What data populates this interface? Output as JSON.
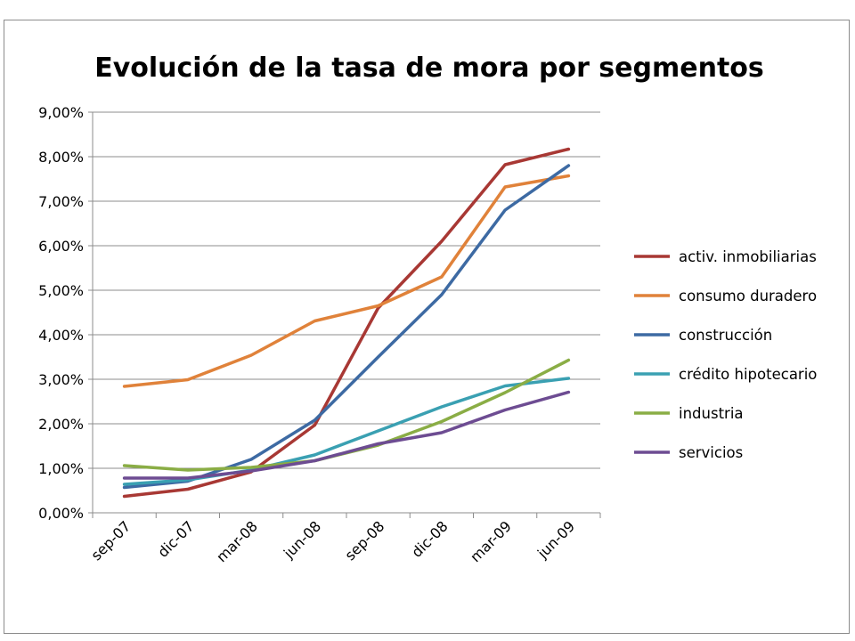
{
  "chart_data": {
    "type": "line",
    "title": "Evolución de la tasa de mora por segmentos",
    "xlabel": "",
    "ylabel": "",
    "categories": [
      "sep-07",
      "dic-07",
      "mar-08",
      "jun-08",
      "sep-08",
      "dic-08",
      "mar-09",
      "jun-09"
    ],
    "y_ticks": [
      "0,00%",
      "1,00%",
      "2,00%",
      "3,00%",
      "4,00%",
      "5,00%",
      "6,00%",
      "7,00%",
      "8,00%",
      "9,00%"
    ],
    "ylim": [
      0,
      9
    ],
    "grid": true,
    "legend_position": "right",
    "series": [
      {
        "name": "activ. inmobiliarias",
        "color": "#a83834",
        "values": [
          0.37,
          0.53,
          0.92,
          1.97,
          4.6,
          6.1,
          7.82,
          8.17
        ]
      },
      {
        "name": "consumo duradero",
        "color": "#e0823a",
        "values": [
          2.84,
          2.99,
          3.54,
          4.31,
          4.65,
          5.3,
          7.32,
          7.57
        ]
      },
      {
        "name": "construcción",
        "color": "#3d6aa3",
        "values": [
          0.57,
          0.71,
          1.2,
          2.08,
          3.5,
          4.9,
          6.8,
          7.8
        ]
      },
      {
        "name": "crédito hipotecario",
        "color": "#3aa0b2",
        "values": [
          0.64,
          0.74,
          0.96,
          1.3,
          1.84,
          2.38,
          2.85,
          3.02
        ]
      },
      {
        "name": "industria",
        "color": "#8aad45",
        "values": [
          1.06,
          0.96,
          1.02,
          1.17,
          1.52,
          2.05,
          2.7,
          3.43
        ]
      },
      {
        "name": "servicios",
        "color": "#6d4c92",
        "values": [
          0.78,
          0.78,
          0.94,
          1.17,
          1.55,
          1.8,
          2.31,
          2.71
        ]
      }
    ]
  }
}
